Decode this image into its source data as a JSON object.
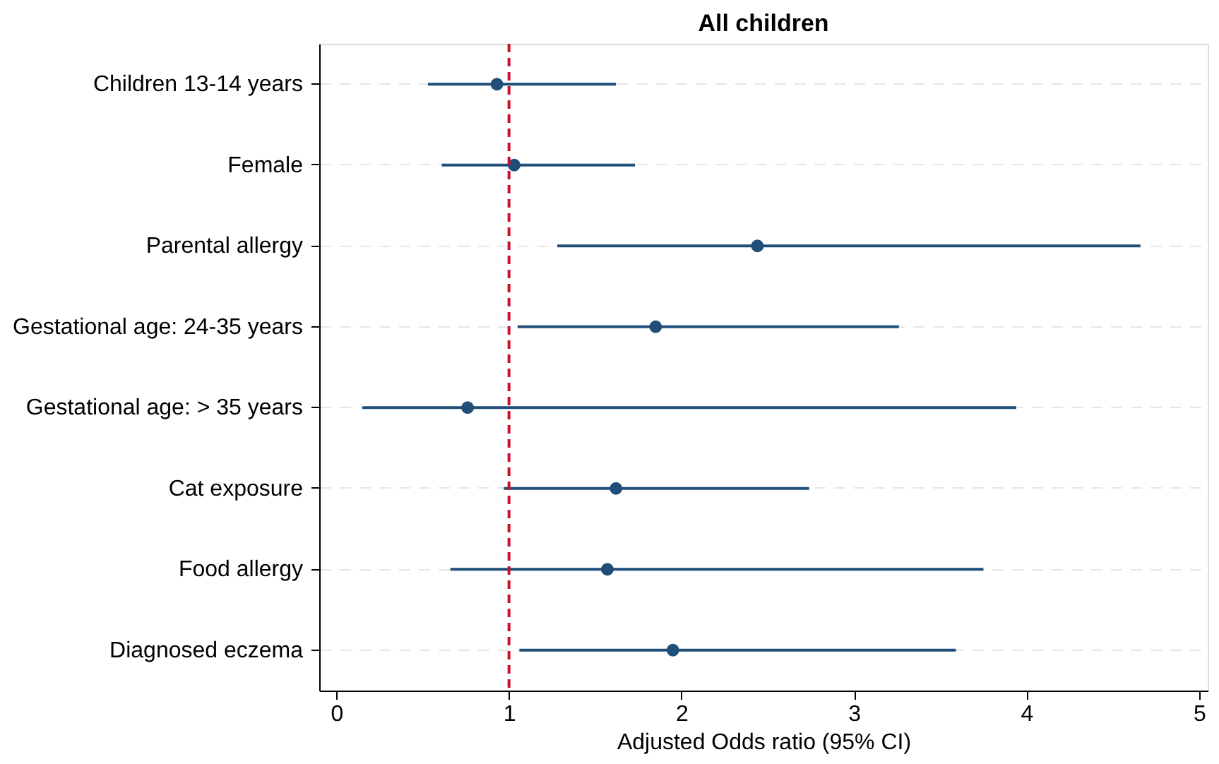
{
  "chart_data": {
    "type": "scatter",
    "orientation": "horizontal",
    "title": "All children",
    "xlabel": "Adjusted Odds ratio (95% CI)",
    "categories": [
      "Children 13-14 years",
      "Female",
      "Parental allergy",
      "Gestational age: 24-35 years",
      "Gestational age: > 35 years",
      "Cat exposure",
      "Food allergy",
      "Diagnosed eczema"
    ],
    "color": "#1f4e79",
    "values": [
      0.93,
      1.03,
      2.44,
      1.85,
      0.76,
      1.62,
      1.57,
      1.95
    ],
    "errors": [
      [
        0.53,
        1.62
      ],
      [
        0.61,
        1.73
      ],
      [
        1.28,
        4.66
      ],
      [
        1.05,
        3.26
      ],
      [
        0.15,
        3.94
      ],
      [
        0.97,
        2.74
      ],
      [
        0.66,
        3.75
      ],
      [
        1.06,
        3.59
      ]
    ],
    "xlim": [
      -0.1,
      5.05
    ],
    "xticks": [
      0,
      1,
      2,
      3,
      4,
      5
    ],
    "ref_lines": [
      {
        "axis": "x",
        "value": 1,
        "color": "#c8102e",
        "line_style": "dashed"
      }
    ],
    "grid": "y",
    "marker": "circle",
    "legend": false
  }
}
